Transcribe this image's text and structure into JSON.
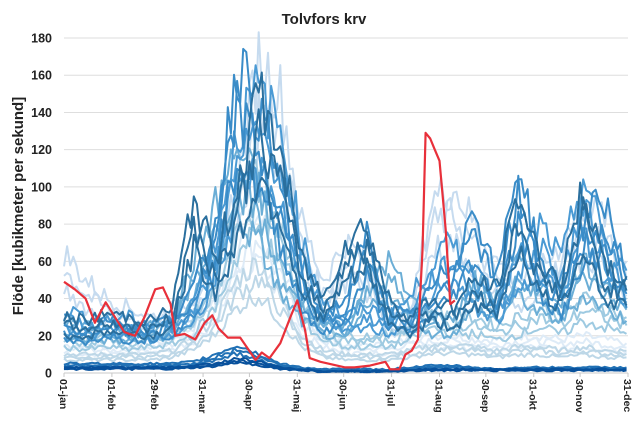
{
  "chart_data": {
    "type": "line",
    "title": "Tolvfors krv",
    "xlabel": "",
    "ylabel": "Flöde [kubikmeter per sekund]",
    "ylim": [
      0,
      180
    ],
    "yticks": [
      0,
      20,
      40,
      60,
      80,
      100,
      120,
      140,
      160,
      180
    ],
    "xlim": [
      0,
      365
    ],
    "xticks": [
      {
        "day": 0,
        "label": "01-jan"
      },
      {
        "day": 31,
        "label": "01-feb"
      },
      {
        "day": 59,
        "label": "29-feb"
      },
      {
        "day": 90,
        "label": "31-mar"
      },
      {
        "day": 120,
        "label": "30-apr"
      },
      {
        "day": 151,
        "label": "31-maj"
      },
      {
        "day": 181,
        "label": "30-jun"
      },
      {
        "day": 212,
        "label": "31-jul"
      },
      {
        "day": 243,
        "label": "31-aug"
      },
      {
        "day": 273,
        "label": "30-sep"
      },
      {
        "day": 304,
        "label": "31-okt"
      },
      {
        "day": 334,
        "label": "30-nov"
      },
      {
        "day": 365,
        "label": "31-dec"
      }
    ],
    "grid": true,
    "legend": "none",
    "background_series_x": [
      0,
      14,
      28,
      42,
      56,
      70,
      84,
      98,
      112,
      126,
      140,
      154,
      168,
      182,
      196,
      210,
      224,
      238,
      252,
      266,
      280,
      294,
      308,
      322,
      336,
      350,
      364
    ],
    "background_series": [
      {
        "color": "#deebf7",
        "values": [
          15,
          15,
          14,
          15,
          16,
          18,
          25,
          40,
          70,
          85,
          60,
          30,
          20,
          15,
          15,
          15,
          18,
          20,
          20,
          18,
          18,
          20,
          20,
          18,
          20,
          18,
          16
        ]
      },
      {
        "color": "#bdd7e7",
        "values": [
          10,
          10,
          10,
          10,
          10,
          12,
          18,
          30,
          50,
          60,
          40,
          20,
          12,
          10,
          10,
          10,
          12,
          15,
          15,
          14,
          12,
          14,
          14,
          12,
          14,
          12,
          12
        ]
      },
      {
        "color": "#c6dbef",
        "values": [
          65,
          50,
          40,
          35,
          30,
          35,
          40,
          60,
          100,
          169,
          150,
          80,
          50,
          70,
          60,
          30,
          30,
          93,
          100,
          80,
          60,
          50,
          55,
          70,
          90,
          85,
          60
        ]
      },
      {
        "color": "#9ecae1",
        "values": [
          20,
          18,
          20,
          18,
          20,
          22,
          30,
          50,
          90,
          110,
          80,
          40,
          25,
          20,
          20,
          20,
          25,
          35,
          30,
          30,
          25,
          30,
          35,
          30,
          40,
          35,
          30
        ]
      },
      {
        "color": "#6baed6",
        "values": [
          28,
          26,
          25,
          24,
          25,
          30,
          60,
          90,
          120,
          100,
          60,
          40,
          30,
          25,
          50,
          60,
          40,
          30,
          30,
          50,
          40,
          60,
          45,
          40,
          60,
          50,
          40
        ]
      },
      {
        "color": "#4a9ad4",
        "values": [
          35,
          30,
          28,
          30,
          25,
          28,
          40,
          70,
          130,
          152,
          130,
          70,
          40,
          30,
          35,
          30,
          40,
          60,
          70,
          50,
          40,
          60,
          80,
          60,
          106,
          70,
          55
        ]
      },
      {
        "color": "#3a8cc8",
        "values": [
          25,
          22,
          30,
          25,
          26,
          30,
          45,
          80,
          168,
          140,
          100,
          50,
          30,
          40,
          75,
          35,
          30,
          45,
          60,
          90,
          50,
          114,
          60,
          45,
          80,
          95,
          50
        ]
      },
      {
        "color": "#2a6f9e",
        "values": [
          30,
          28,
          32,
          30,
          28,
          35,
          95,
          60,
          100,
          150,
          120,
          60,
          40,
          70,
          80,
          40,
          30,
          40,
          35,
          50,
          45,
          97,
          60,
          50,
          100,
          55,
          52
        ]
      },
      {
        "color": "#2171b5",
        "values": [
          5,
          5,
          5,
          5,
          5,
          5,
          6,
          10,
          15,
          10,
          5,
          3,
          2,
          2,
          2,
          2,
          3,
          4,
          4,
          3,
          2,
          3,
          3,
          3,
          3,
          3,
          3
        ]
      },
      {
        "color": "#08519c",
        "values": [
          3,
          3,
          3,
          3,
          3,
          3,
          4,
          5,
          8,
          6,
          3,
          2,
          1,
          1,
          1,
          1,
          2,
          2,
          2,
          2,
          2,
          2,
          2,
          2,
          2,
          2,
          2
        ]
      }
    ],
    "highlight_series": {
      "color": "#e8303a",
      "x": [
        0,
        7,
        14,
        20,
        27,
        33,
        39,
        46,
        52,
        59,
        64,
        69,
        72,
        78,
        85,
        91,
        96,
        100,
        106,
        114,
        119,
        124,
        128,
        133,
        140,
        147,
        151,
        156,
        159,
        166,
        182,
        188,
        198,
        208,
        211,
        217,
        221,
        225,
        229,
        232,
        234,
        237,
        240,
        243,
        247,
        250,
        253
      ],
      "values": [
        49,
        45,
        40,
        27,
        38,
        30,
        22,
        20,
        30,
        45,
        46,
        37,
        20,
        21,
        18,
        27,
        31,
        24,
        19,
        19,
        13,
        7,
        11,
        8,
        16,
        31,
        39,
        23,
        8,
        6,
        3,
        3,
        4,
        6,
        2,
        2,
        10,
        12,
        18,
        66,
        129,
        126,
        120,
        114,
        77,
        37,
        39
      ]
    }
  }
}
